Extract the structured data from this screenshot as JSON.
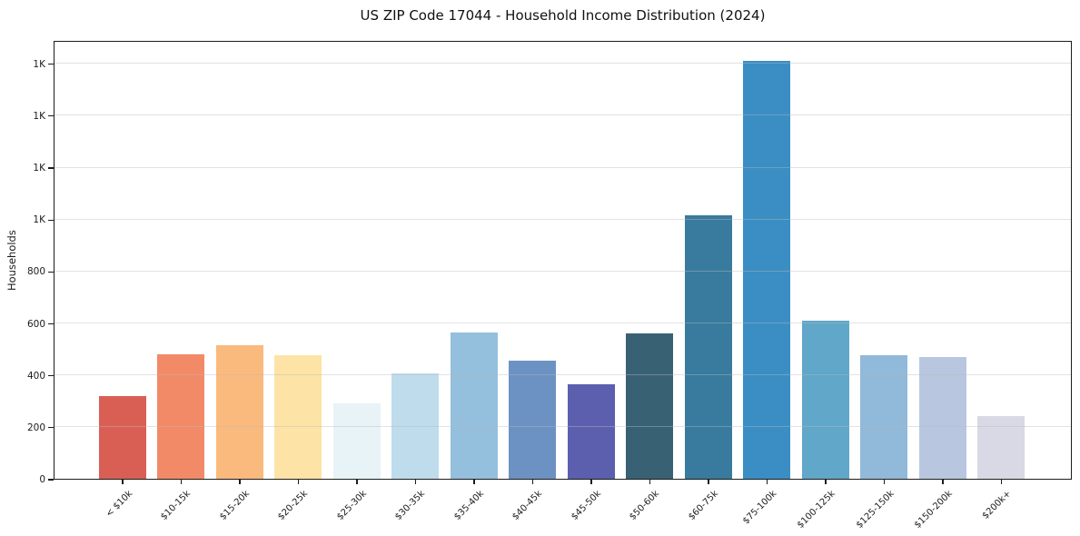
{
  "chart_data": {
    "type": "bar",
    "title": "US ZIP Code 17044 - Household Income Distribution (2024)",
    "xlabel": "",
    "ylabel": "Households",
    "categories": [
      "< $10k",
      "$10-15k",
      "$15-20k",
      "$20-25k",
      "$25-30k",
      "$30-35k",
      "$35-40k",
      "$40-45k",
      "$45-50k",
      "$50-60k",
      "$60-75k",
      "$75-100k",
      "$100-125k",
      "$125-150k",
      "$150-200k",
      "$200k+"
    ],
    "values": [
      320,
      480,
      515,
      475,
      290,
      405,
      565,
      455,
      365,
      560,
      1015,
      1610,
      610,
      475,
      470,
      240
    ],
    "bar_colors": [
      "#d95f55",
      "#f28a68",
      "#fab97d",
      "#fde3a6",
      "#e7f3f6",
      "#bedcec",
      "#94c0dd",
      "#6c92c4",
      "#5b5fae",
      "#386274",
      "#387b9e",
      "#3a8ec4",
      "#60a7c9",
      "#91b9d9",
      "#b8c7df",
      "#d8d9e5"
    ],
    "ylim": [
      0,
      1690
    ],
    "yticks": [
      {
        "value": 0,
        "label": "0"
      },
      {
        "value": 200,
        "label": "200"
      },
      {
        "value": 400,
        "label": "400"
      },
      {
        "value": 600,
        "label": "600"
      },
      {
        "value": 800,
        "label": "800"
      },
      {
        "value": 1000,
        "label": "1K"
      },
      {
        "value": 1200,
        "label": "1K"
      },
      {
        "value": 1400,
        "label": "1K"
      },
      {
        "value": 1600,
        "label": "1K"
      }
    ],
    "grid": "horizontal",
    "legend": "none",
    "colors": {
      "background": "#ffffff",
      "spine": "#1c1c1c",
      "gridline": "#ececec",
      "tick_text": "#1c1c1c",
      "title_text": "#111111"
    }
  }
}
